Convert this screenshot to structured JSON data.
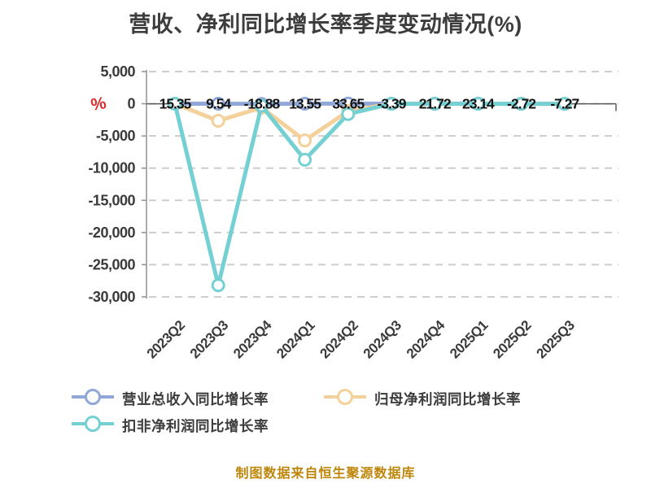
{
  "title": "营收、净利同比增长率季度变动情况(%)",
  "unit_symbol": "%",
  "footer": "制图数据来自恒生聚源数据库",
  "colors": {
    "revenue_series": "#91a7d8",
    "net_profit_series": "#f4d09a",
    "deducted_profit_series": "#74d0d2",
    "unit_symbol_red": "#e02a2a",
    "footer_gold": "#be860b",
    "gridline": "#cdcdcd",
    "axis": "#5a5a5a",
    "tick_text": "#3a3a3a",
    "point_label_text": "#141414"
  },
  "legend": [
    {
      "label": "营业总收入同比增长率",
      "color": "#91a7d8"
    },
    {
      "label": "归母净利润同比增长率",
      "color": "#f4d09a"
    },
    {
      "label": "扣非净利润同比增长率",
      "color": "#74d0d2"
    }
  ],
  "chart_data": {
    "type": "line",
    "title": "营收、净利同比增长率季度变动情况(%)",
    "categories": [
      "2023Q2",
      "2023Q3",
      "2023Q4",
      "2024Q1",
      "2024Q2",
      "2024Q3",
      "2024Q4",
      "2025Q1",
      "2025Q2",
      "2025Q3"
    ],
    "series": [
      {
        "name": "营业总收入同比增长率",
        "color": "#91a7d8",
        "values": [
          15.35,
          9.54,
          -18.88,
          13.55,
          33.65,
          -3.39,
          21.72,
          23.14,
          -2.72,
          -7.27
        ],
        "labels": [
          "15.35",
          "9.54",
          "-18.88",
          "13.55",
          "33.65",
          "-3.39",
          "21.72",
          "23.14",
          "-2.72",
          "-7.27"
        ],
        "show_labels": true
      },
      {
        "name": "归母净利润同比增长率",
        "color": "#f4d09a",
        "values": [
          0,
          -2650,
          -600,
          -5700,
          -1150,
          0,
          0,
          0,
          0,
          0
        ],
        "show_labels": false
      },
      {
        "name": "扣非净利润同比增长率",
        "color": "#74d0d2",
        "values": [
          0,
          -28200,
          -300,
          -8700,
          -1600,
          0,
          0,
          0,
          0,
          0
        ],
        "show_labels": false
      }
    ],
    "yticks": [
      5000,
      0,
      -5000,
      -10000,
      -15000,
      -20000,
      -25000,
      -30000
    ],
    "ylim": [
      -30000,
      5000
    ],
    "ylabel": "%",
    "grid": true,
    "grid_style": "dashed",
    "legend_position": "bottom",
    "x_label_rotation": -45
  }
}
